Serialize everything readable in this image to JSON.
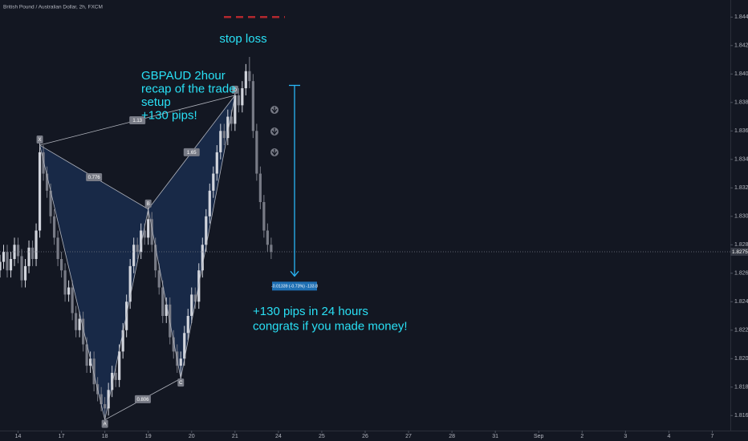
{
  "chart_data": {
    "type": "candlestick",
    "title": "British Pound / Australian Dollar, 2h, FXCM",
    "up_color": "#d1d4dc",
    "down_color": "#787b86",
    "open": [
      1.8262,
      1.8268,
      1.8275,
      1.8262,
      1.827,
      1.828,
      1.8272,
      1.8255,
      1.8265,
      1.8278,
      1.827,
      1.829,
      1.8345,
      1.833,
      1.8318,
      1.83,
      1.8285,
      1.827,
      1.8262,
      1.8245,
      1.825,
      1.8232,
      1.822,
      1.8228,
      1.821,
      1.8195,
      1.82,
      1.8182,
      1.8175,
      1.8168,
      1.8165,
      1.8178,
      1.819,
      1.8185,
      1.8205,
      1.822,
      1.824,
      1.8265,
      1.828,
      1.8275,
      1.829,
      1.8285,
      1.8298,
      1.828,
      1.8262,
      1.825,
      1.823,
      1.8238,
      1.8215,
      1.8205,
      1.8195,
      1.82,
      1.8218,
      1.823,
      1.8245,
      1.824,
      1.8262,
      1.828,
      1.83,
      1.8318,
      1.833,
      1.8345,
      1.836,
      1.8355,
      1.837,
      1.8365,
      1.8385,
      1.8378,
      1.839,
      1.8402,
      1.8395,
      1.836,
      1.833,
      1.831,
      1.829,
      1.828
    ],
    "high": [
      1.8273,
      1.828,
      1.828,
      1.8275,
      1.8285,
      1.8285,
      1.8277,
      1.827,
      1.8283,
      1.8283,
      1.8295,
      1.8352,
      1.835,
      1.8335,
      1.8323,
      1.8305,
      1.829,
      1.8275,
      1.8267,
      1.8255,
      1.8255,
      1.8237,
      1.8233,
      1.8233,
      1.8215,
      1.8205,
      1.8205,
      1.8187,
      1.818,
      1.8173,
      1.8183,
      1.8195,
      1.8195,
      1.821,
      1.8225,
      1.8245,
      1.827,
      1.8285,
      1.8285,
      1.8295,
      1.8295,
      1.8308,
      1.8303,
      1.8285,
      1.8267,
      1.8255,
      1.8243,
      1.8243,
      1.822,
      1.821,
      1.8205,
      1.8223,
      1.8235,
      1.825,
      1.825,
      1.8267,
      1.8285,
      1.8305,
      1.8323,
      1.8335,
      1.835,
      1.8365,
      1.8365,
      1.8375,
      1.8375,
      1.839,
      1.839,
      1.8395,
      1.8407,
      1.8412,
      1.84,
      1.8365,
      1.8335,
      1.8315,
      1.8295,
      1.8285
    ],
    "low": [
      1.8257,
      1.8263,
      1.8257,
      1.8257,
      1.8265,
      1.8267,
      1.825,
      1.825,
      1.826,
      1.8265,
      1.8265,
      1.8285,
      1.8325,
      1.8313,
      1.8295,
      1.828,
      1.8265,
      1.8257,
      1.824,
      1.824,
      1.8227,
      1.8215,
      1.8215,
      1.8205,
      1.819,
      1.819,
      1.8177,
      1.817,
      1.8163,
      1.8157,
      1.816,
      1.8173,
      1.818,
      1.818,
      1.82,
      1.8215,
      1.8235,
      1.826,
      1.827,
      1.827,
      1.828,
      1.828,
      1.8275,
      1.8257,
      1.8245,
      1.8225,
      1.8225,
      1.821,
      1.82,
      1.819,
      1.8186,
      1.8195,
      1.8213,
      1.8225,
      1.8235,
      1.8235,
      1.8257,
      1.8275,
      1.8295,
      1.8313,
      1.8325,
      1.834,
      1.835,
      1.835,
      1.836,
      1.836,
      1.8373,
      1.8373,
      1.8385,
      1.839,
      1.8355,
      1.8325,
      1.8305,
      1.8285,
      1.8275,
      1.827
    ],
    "close": [
      1.8268,
      1.8275,
      1.8262,
      1.827,
      1.828,
      1.8272,
      1.8255,
      1.8265,
      1.8278,
      1.827,
      1.829,
      1.8345,
      1.833,
      1.8318,
      1.83,
      1.8285,
      1.827,
      1.8262,
      1.8245,
      1.825,
      1.8232,
      1.822,
      1.8228,
      1.821,
      1.8195,
      1.82,
      1.8182,
      1.8175,
      1.8168,
      1.8165,
      1.8178,
      1.819,
      1.8185,
      1.8205,
      1.822,
      1.824,
      1.8265,
      1.828,
      1.8275,
      1.829,
      1.8285,
      1.8298,
      1.828,
      1.8262,
      1.825,
      1.823,
      1.8238,
      1.8215,
      1.8205,
      1.8195,
      1.82,
      1.8218,
      1.823,
      1.8245,
      1.824,
      1.8262,
      1.828,
      1.83,
      1.8318,
      1.833,
      1.8345,
      1.836,
      1.8355,
      1.837,
      1.8365,
      1.8385,
      1.8378,
      1.839,
      1.8402,
      1.8395,
      1.836,
      1.833,
      1.831,
      1.829,
      1.828,
      1.8275
    ],
    "xlim": [
      0,
      202
    ],
    "xticks": [
      {
        "value": 5,
        "label": "14"
      },
      {
        "value": 17,
        "label": "17"
      },
      {
        "value": 29,
        "label": "18"
      },
      {
        "value": 41,
        "label": "19"
      },
      {
        "value": 53,
        "label": "20"
      },
      {
        "value": 65,
        "label": "21"
      },
      {
        "value": 77,
        "label": "24"
      },
      {
        "value": 89,
        "label": "25"
      },
      {
        "value": 101,
        "label": "26"
      },
      {
        "value": 113,
        "label": "27"
      },
      {
        "value": 125,
        "label": "28"
      },
      {
        "value": 137,
        "label": "31"
      },
      {
        "value": 149,
        "label": "Sep"
      },
      {
        "value": 161,
        "label": "2"
      },
      {
        "value": 173,
        "label": "3"
      },
      {
        "value": 185,
        "label": "4"
      },
      {
        "value": 197,
        "label": "7"
      }
    ],
    "ylim": [
      1.815,
      1.8452
    ],
    "yticks": [
      {
        "value": 1.844,
        "label": "1.84400"
      },
      {
        "value": 1.842,
        "label": "1.84200"
      },
      {
        "value": 1.84,
        "label": "1.84000"
      },
      {
        "value": 1.838,
        "label": "1.83800"
      },
      {
        "value": 1.836,
        "label": "1.83600"
      },
      {
        "value": 1.834,
        "label": "1.83400"
      },
      {
        "value": 1.832,
        "label": "1.83200"
      },
      {
        "value": 1.83,
        "label": "1.83000"
      },
      {
        "value": 1.828,
        "label": "1.82800"
      },
      {
        "value": 1.826,
        "label": "1.82600"
      },
      {
        "value": 1.824,
        "label": "1.82400"
      },
      {
        "value": 1.822,
        "label": "1.82200"
      },
      {
        "value": 1.82,
        "label": "1.82000"
      },
      {
        "value": 1.818,
        "label": "1.81800"
      },
      {
        "value": 1.816,
        "label": "1.81600"
      }
    ],
    "last_price": 1.82751,
    "pattern": {
      "points": [
        {
          "label": "X",
          "x": 11,
          "price": 1.835
        },
        {
          "label": "A",
          "x": 29,
          "price": 1.8157
        },
        {
          "label": "B",
          "x": 41,
          "price": 1.8305
        },
        {
          "label": "C",
          "x": 50,
          "price": 1.8186
        },
        {
          "label": "D",
          "x": 65,
          "price": 1.8385
        }
      ],
      "ratios": [
        "0.776",
        "1.13",
        "1.65",
        "0.806"
      ]
    },
    "stop_loss": {
      "price": 1.844,
      "label": "stop loss"
    },
    "measure": {
      "from": 1.8392,
      "to": 1.8258,
      "label": "-0.01339 (-0.73%) -133.8"
    },
    "annotations": [
      [
        "GBPAUD 2hour",
        "recap of the trade",
        "setup",
        "+130 pips!"
      ],
      [
        "+130 pips in 24 hours",
        "congrats if you made money!"
      ]
    ]
  }
}
